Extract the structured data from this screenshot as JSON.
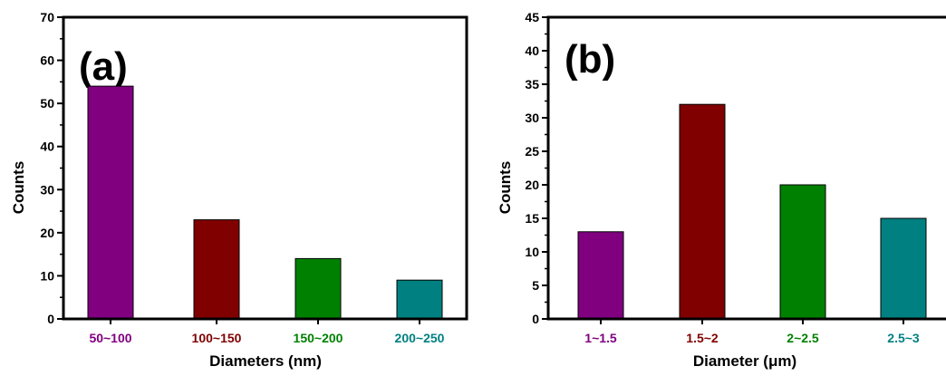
{
  "chart_data": [
    {
      "type": "bar",
      "panel_label": "(a)",
      "categories": [
        "50~100",
        "100~150",
        "150~200",
        "200~250"
      ],
      "values": [
        54,
        23,
        14,
        9
      ],
      "category_colors": [
        "#800080",
        "#800000",
        "#008000",
        "#008080"
      ],
      "xlabel": "Diameters (nm)",
      "ylabel": "Counts",
      "ylim": [
        0,
        70
      ],
      "yticks": [
        "0",
        "10",
        "20",
        "30",
        "40",
        "50",
        "60",
        "70"
      ],
      "grid": false
    },
    {
      "type": "bar",
      "panel_label": "(b)",
      "categories": [
        "1~1.5",
        "1.5~2",
        "2~2.5",
        "2.5~3"
      ],
      "values": [
        13,
        32,
        20,
        15
      ],
      "category_colors": [
        "#800080",
        "#800000",
        "#008000",
        "#008080"
      ],
      "xlabel": "Diameter (μm)",
      "ylabel": "Counts",
      "ylim": [
        0,
        45
      ],
      "yticks": [
        "0",
        "5",
        "10",
        "15",
        "20",
        "25",
        "30",
        "35",
        "40",
        "45"
      ],
      "grid": false
    }
  ]
}
